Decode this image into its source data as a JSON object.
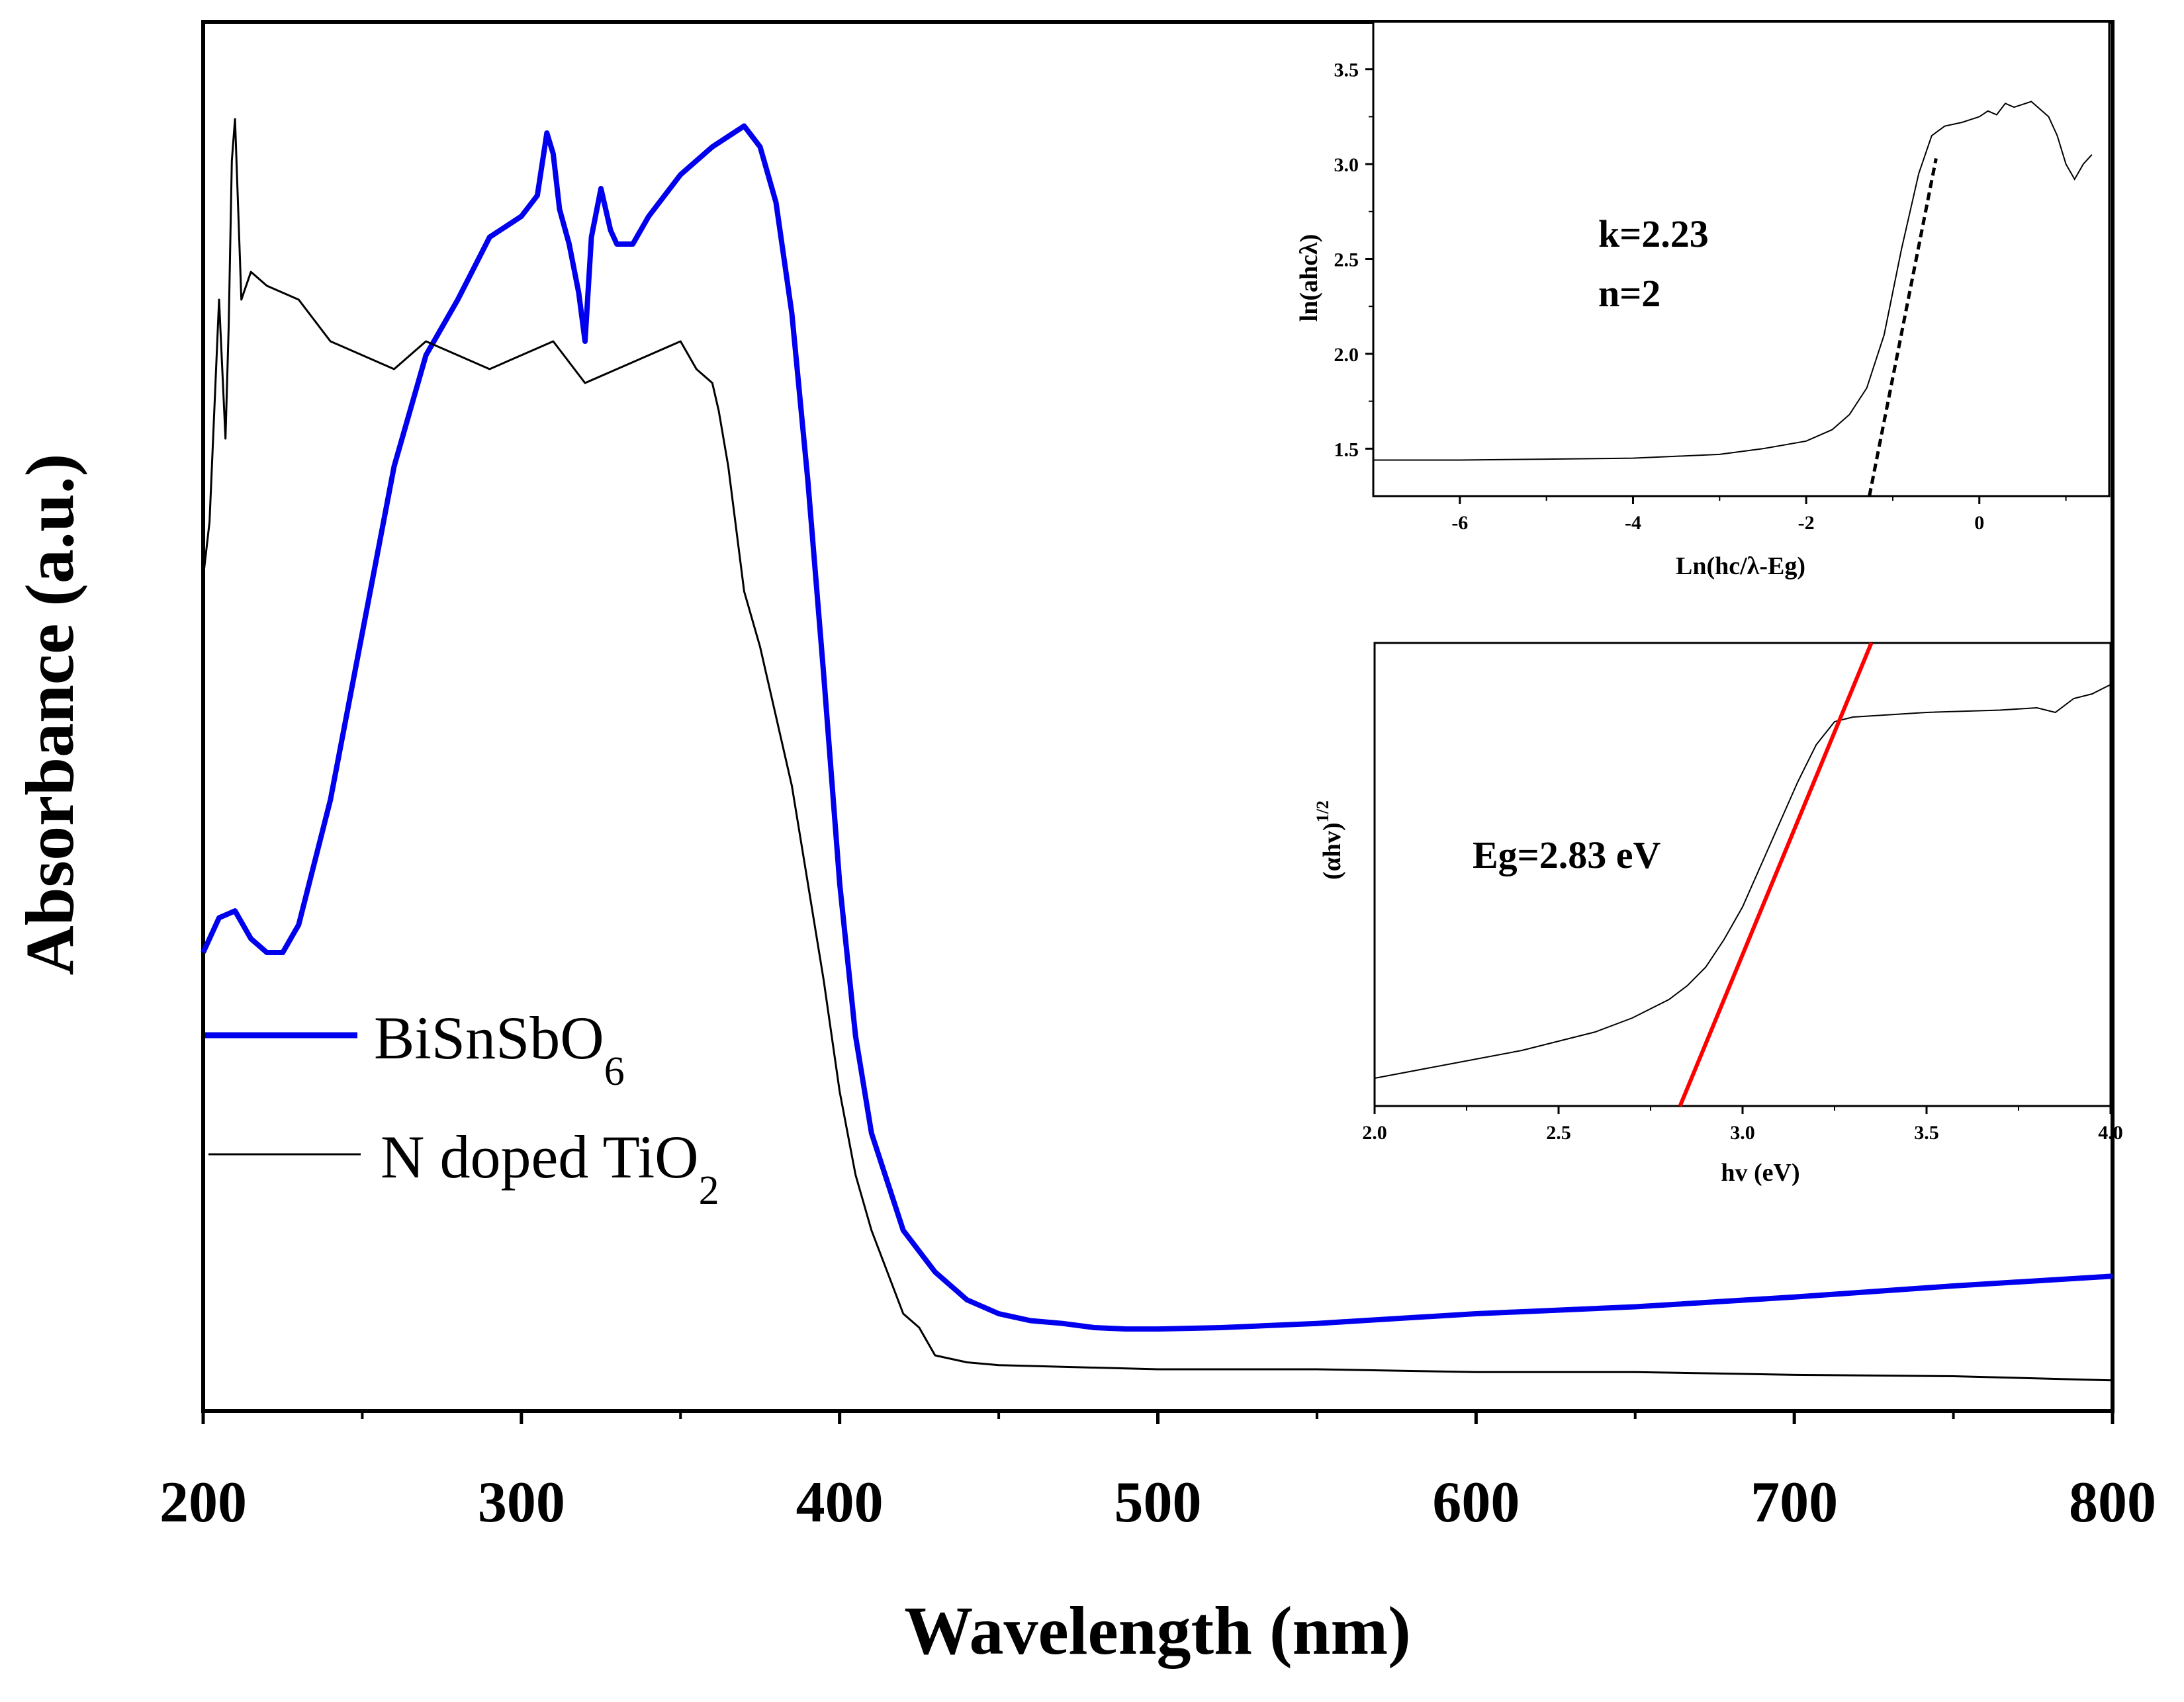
{
  "chart_data": [
    {
      "type": "line",
      "id": "main",
      "title": "",
      "xlabel": "Wavelength (nm)",
      "ylabel": "Absorbance (a.u.)",
      "xlim": [
        200,
        800
      ],
      "ylim": [
        0,
        100
      ],
      "xticks": [
        200,
        300,
        400,
        500,
        600,
        700,
        800
      ],
      "grid": false,
      "legend_position": "lower-left",
      "series": [
        {
          "name": "BiSnSbO6",
          "legend_main": "BiSnSbO",
          "legend_sub": "6",
          "color": "#0000ee",
          "x": [
            200,
            205,
            210,
            215,
            220,
            225,
            230,
            240,
            250,
            260,
            270,
            280,
            290,
            300,
            305,
            308,
            310,
            312,
            315,
            318,
            320,
            322,
            325,
            328,
            330,
            335,
            340,
            350,
            360,
            370,
            375,
            380,
            385,
            390,
            395,
            400,
            405,
            410,
            420,
            430,
            440,
            450,
            460,
            470,
            480,
            490,
            500,
            520,
            550,
            600,
            650,
            700,
            750,
            800
          ],
          "y": [
            33,
            35.5,
            36,
            34,
            33,
            33,
            35,
            44,
            56,
            68,
            76,
            80,
            84.5,
            86,
            87.5,
            92,
            90.5,
            86.5,
            84,
            80.5,
            77,
            84.5,
            88,
            85,
            84,
            84,
            86,
            89,
            91,
            92.5,
            91,
            87,
            79,
            67,
            53,
            38,
            27,
            20,
            13,
            10,
            8,
            7,
            6.5,
            6.3,
            6,
            5.9,
            5.9,
            6,
            6.3,
            7,
            7.5,
            8.2,
            9,
            9.7
          ]
        },
        {
          "name": "N doped TiO2",
          "legend_main": "N doped TiO",
          "legend_sub": "2",
          "color": "#000000",
          "x": [
            200,
            202,
            205,
            207,
            208,
            209,
            210,
            212,
            215,
            220,
            230,
            240,
            250,
            260,
            270,
            280,
            290,
            300,
            310,
            320,
            330,
            340,
            350,
            355,
            360,
            362,
            365,
            370,
            375,
            380,
            385,
            390,
            395,
            400,
            405,
            410,
            415,
            420,
            425,
            430,
            440,
            450,
            500,
            550,
            600,
            650,
            700,
            750,
            800
          ],
          "y": [
            60,
            64,
            80,
            70,
            78,
            90,
            93,
            80,
            82,
            81,
            80,
            77,
            76,
            75,
            77,
            76,
            75,
            76,
            77,
            74,
            75,
            76,
            77,
            75,
            74,
            72,
            68,
            59,
            55,
            50,
            45,
            38,
            31,
            23,
            17,
            13,
            10,
            7,
            6,
            4,
            3.5,
            3.3,
            3,
            3,
            2.8,
            2.8,
            2.6,
            2.5,
            2.2
          ]
        }
      ]
    },
    {
      "type": "line",
      "id": "inset-top",
      "xlabel": "Ln(hc/λ-Eg)",
      "ylabel": "ln(ahcλ)",
      "xlim": [
        -7,
        1.5
      ],
      "ylim": [
        1.25,
        3.75
      ],
      "xticks": [
        -6,
        -4,
        -2,
        0
      ],
      "yticks": [
        1.5,
        2.0,
        2.5,
        3.0,
        3.5
      ],
      "annotations": [
        "k=2.23",
        "n=2"
      ],
      "series": [
        {
          "name": "curve",
          "color": "#000000",
          "x": [
            -7,
            -6,
            -5,
            -4,
            -3,
            -2.5,
            -2,
            -1.7,
            -1.5,
            -1.3,
            -1.1,
            -0.9,
            -0.7,
            -0.55,
            -0.4,
            -0.2,
            0,
            0.1,
            0.2,
            0.3,
            0.4,
            0.6,
            0.8,
            0.9,
            1.0,
            1.1,
            1.2,
            1.3
          ],
          "y": [
            1.44,
            1.44,
            1.445,
            1.45,
            1.47,
            1.5,
            1.54,
            1.6,
            1.68,
            1.82,
            2.1,
            2.55,
            2.95,
            3.15,
            3.2,
            3.22,
            3.25,
            3.28,
            3.26,
            3.32,
            3.3,
            3.33,
            3.25,
            3.15,
            3.0,
            2.92,
            3.0,
            3.05
          ]
        },
        {
          "name": "fit",
          "style": "dashed",
          "color": "#000000",
          "x": [
            -1.27,
            -0.5
          ],
          "y": [
            1.25,
            3.03
          ]
        }
      ]
    },
    {
      "type": "line",
      "id": "inset-bottom",
      "xlabel": "hv (eV)",
      "ylabel": "(αhv)",
      "ylabel_sup": "1/2",
      "xlim": [
        2.0,
        4.0
      ],
      "ylim": [
        0,
        100
      ],
      "xticks": [
        "2.0",
        "2.5",
        "3.0",
        "3.5",
        "4.0"
      ],
      "annotations": [
        "Eg=2.83 eV"
      ],
      "series": [
        {
          "name": "curve",
          "color": "#000000",
          "x": [
            2.0,
            2.2,
            2.4,
            2.6,
            2.7,
            2.8,
            2.85,
            2.9,
            2.95,
            3.0,
            3.05,
            3.1,
            3.15,
            3.2,
            3.25,
            3.3,
            3.5,
            3.7,
            3.8,
            3.85,
            3.9,
            3.95,
            4.0
          ],
          "y": [
            6,
            9,
            12,
            16,
            19,
            23,
            26,
            30,
            36,
            43,
            52,
            61,
            70,
            78,
            83,
            84,
            85,
            85.5,
            86,
            85,
            88,
            89,
            91
          ]
        },
        {
          "name": "fit",
          "color": "#ff0000",
          "x": [
            2.83,
            3.35
          ],
          "y": [
            0,
            100
          ]
        }
      ]
    }
  ]
}
